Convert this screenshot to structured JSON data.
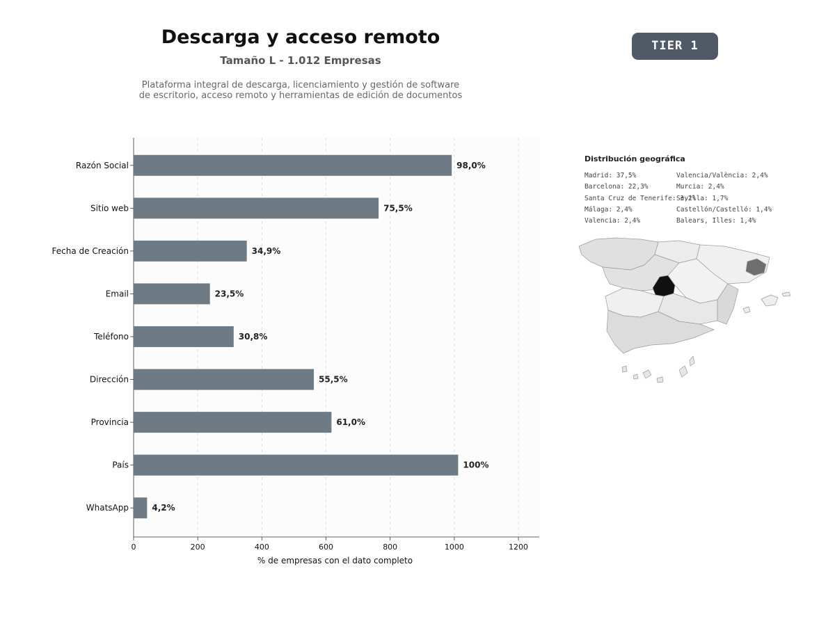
{
  "header": {
    "title": "Descarga y acceso remoto",
    "subtitle": "Tamaño L - 1.012 Empresas",
    "description_line1": "Plataforma integral de descarga, licenciamiento y gestión de software",
    "description_line2": "de escritorio, acceso remoto y herramientas de edición de documentos"
  },
  "badge": {
    "label": "TIER 1",
    "color": "#4f5a66"
  },
  "chart_data": {
    "type": "bar",
    "orientation": "horizontal",
    "categories": [
      "Razón Social",
      "Sitio web",
      "Fecha de Creación",
      "Email",
      "Teléfono",
      "Dirección",
      "Provincia",
      "País",
      "WhatsApp"
    ],
    "values": [
      992,
      764,
      353,
      238,
      312,
      562,
      617,
      1012,
      42
    ],
    "data_labels": [
      "98,0%",
      "75,5%",
      "34,9%",
      "23,5%",
      "30,8%",
      "55,5%",
      "61,0%",
      "100%",
      "4,2%"
    ],
    "xlabel": "% de empresas con el dato completo",
    "ylabel": "",
    "xlim": [
      0,
      1265
    ],
    "xticks": [
      0,
      200,
      400,
      600,
      800,
      1000,
      1200
    ],
    "grid": "vertical dashed",
    "bar_color": "#6e7a84"
  },
  "geo": {
    "title": "Distribución geográfica",
    "items": [
      "Madrid: 37,5%",
      "Barcelona: 22,3%",
      "Santa Cruz de Tenerife: 3,2%",
      "Málaga: 2,4%",
      "Valencia: 2,4%",
      "Valencia/València: 2,4%",
      "Murcia: 2,4%",
      "Sevilla: 1,7%",
      "Castellón/Castelló: 1,4%",
      "Balears, Illes: 1,4%"
    ]
  }
}
